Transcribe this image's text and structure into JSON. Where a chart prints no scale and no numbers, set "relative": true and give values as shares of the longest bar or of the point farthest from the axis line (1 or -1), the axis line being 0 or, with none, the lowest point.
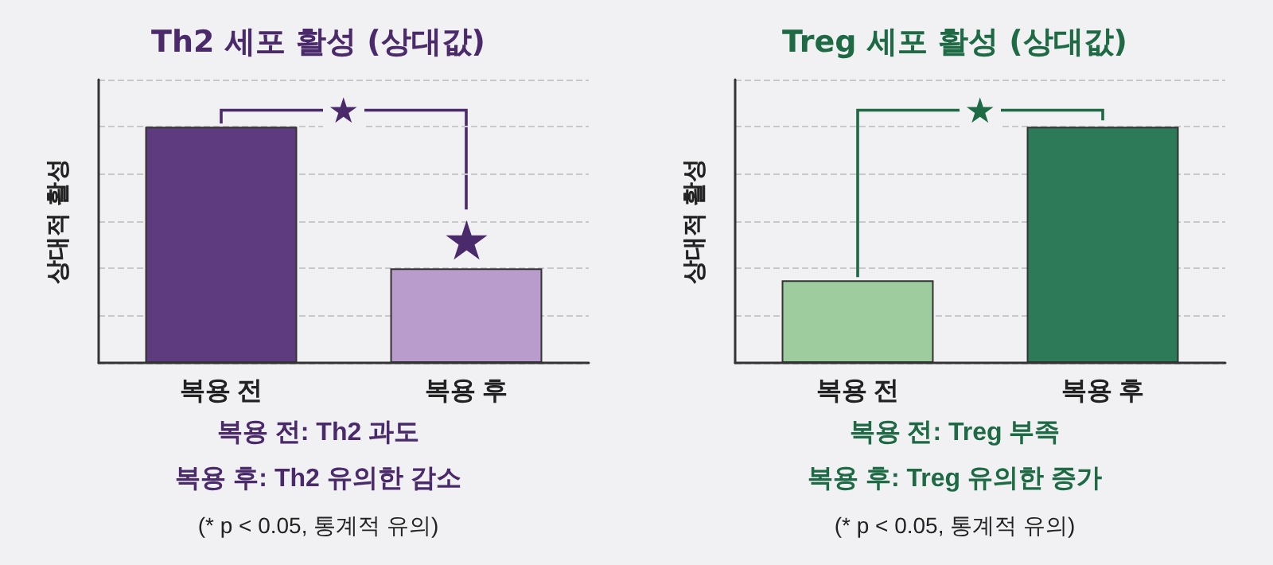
{
  "chart_data": [
    {
      "type": "bar",
      "title": "Th2 세포 활성 (상대값)",
      "ylabel": "상대적 활성",
      "categories": [
        "복용 전",
        "복용 후"
      ],
      "values": [
        1,
        0.4
      ],
      "colors": [
        "#5e3a7e",
        "#b99bcc"
      ],
      "relative": true,
      "grid": "y",
      "annotations": [
        "★",
        "★",
        "복용 전: Th2 과도",
        "복용 후: Th2 유의한 감소",
        "(* p < 0.05, 통계적 유의)"
      ]
    },
    {
      "type": "bar",
      "title": "Treg 세포 활성 (상대값)",
      "ylabel": "상대적 활성",
      "categories": [
        "복용 전",
        "복용 후"
      ],
      "values": [
        0.35,
        1
      ],
      "colors": [
        "#9fcc9f",
        "#2c7a58"
      ],
      "relative": true,
      "grid": "y",
      "annotations": [
        "★",
        "복용 전: Treg 부족",
        "복용 후: Treg 유의한 증가",
        "(* p < 0.05, 통계적 유의)"
      ]
    }
  ]
}
